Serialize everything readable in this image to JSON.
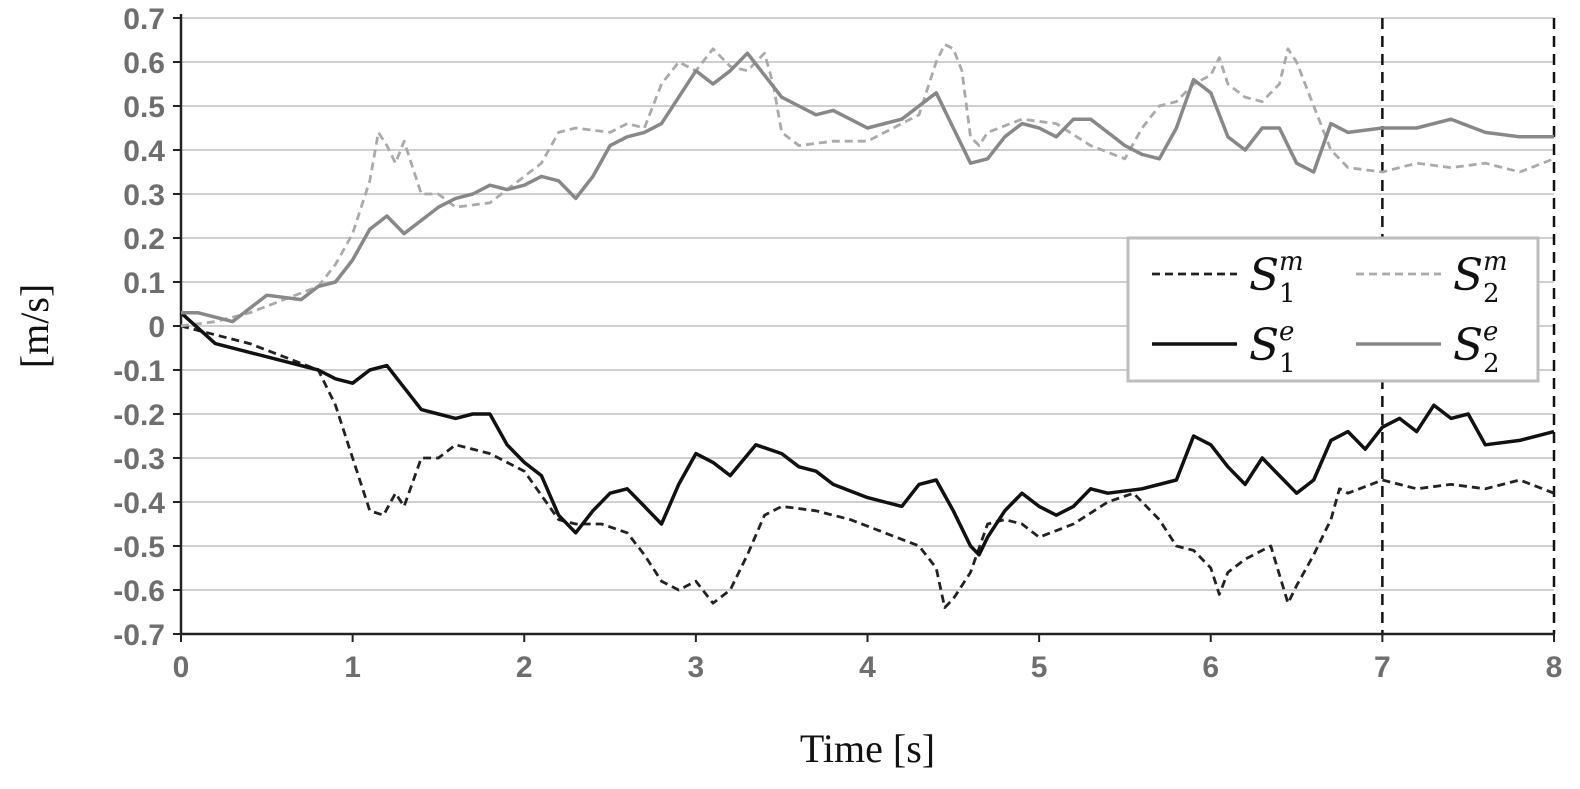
{
  "chart_data": {
    "type": "line",
    "xlabel": "Time [s]",
    "ylabel": "[m/s]",
    "xlim": [
      0,
      8
    ],
    "ylim": [
      -0.7,
      0.7
    ],
    "x_ticks": [
      "0",
      "1",
      "2",
      "3",
      "4",
      "5",
      "6",
      "7",
      "8"
    ],
    "y_ticks": [
      "0.7",
      "0.6",
      "0.5",
      "0.4",
      "0.3",
      "0.2",
      "0.1",
      "0",
      "-0.1",
      "-0.2",
      "-0.3",
      "-0.4",
      "-0.5",
      "-0.6",
      "-0.7"
    ],
    "grid": "horizontal",
    "vertical_markers": [
      7,
      8
    ],
    "legend_position": "right-middle",
    "series": [
      {
        "name": "S1m",
        "label_base": "S",
        "label_sub": "1",
        "label_sup": "m",
        "color": "#222222",
        "style": "dashed",
        "x": [
          0,
          0.2,
          0.4,
          0.6,
          0.8,
          0.9,
          1.0,
          1.1,
          1.18,
          1.25,
          1.3,
          1.4,
          1.5,
          1.6,
          1.8,
          2.0,
          2.2,
          2.3,
          2.45,
          2.6,
          2.7,
          2.8,
          2.9,
          3.0,
          3.1,
          3.2,
          3.3,
          3.4,
          3.5,
          3.7,
          3.9,
          4.1,
          4.3,
          4.4,
          4.45,
          4.5,
          4.6,
          4.7,
          4.8,
          4.9,
          5.0,
          5.2,
          5.4,
          5.55,
          5.7,
          5.8,
          5.9,
          6.0,
          6.05,
          6.1,
          6.2,
          6.35,
          6.45,
          6.5,
          6.6,
          6.7,
          6.75,
          6.8,
          7.0,
          7.2,
          7.4,
          7.6,
          7.8,
          8.0
        ],
        "y": [
          0.0,
          -0.02,
          -0.04,
          -0.07,
          -0.1,
          -0.18,
          -0.3,
          -0.42,
          -0.43,
          -0.38,
          -0.41,
          -0.3,
          -0.3,
          -0.27,
          -0.29,
          -0.33,
          -0.44,
          -0.45,
          -0.45,
          -0.47,
          -0.52,
          -0.58,
          -0.6,
          -0.58,
          -0.63,
          -0.6,
          -0.52,
          -0.43,
          -0.41,
          -0.42,
          -0.44,
          -0.47,
          -0.5,
          -0.55,
          -0.64,
          -0.62,
          -0.56,
          -0.45,
          -0.44,
          -0.45,
          -0.48,
          -0.45,
          -0.4,
          -0.38,
          -0.44,
          -0.5,
          -0.51,
          -0.55,
          -0.61,
          -0.56,
          -0.53,
          -0.5,
          -0.63,
          -0.59,
          -0.52,
          -0.44,
          -0.37,
          -0.38,
          -0.35,
          -0.37,
          -0.36,
          -0.37,
          -0.35,
          -0.38
        ]
      },
      {
        "name": "S2m",
        "label_base": "S",
        "label_sub": "2",
        "label_sup": "m",
        "color": "#aaaaaa",
        "style": "dashed",
        "x": [
          0,
          0.2,
          0.4,
          0.6,
          0.8,
          0.9,
          1.0,
          1.1,
          1.15,
          1.2,
          1.25,
          1.3,
          1.4,
          1.5,
          1.6,
          1.8,
          2.0,
          2.1,
          2.2,
          2.3,
          2.5,
          2.6,
          2.7,
          2.8,
          2.9,
          3.0,
          3.1,
          3.2,
          3.3,
          3.4,
          3.45,
          3.5,
          3.6,
          3.8,
          4.0,
          4.2,
          4.3,
          4.4,
          4.45,
          4.5,
          4.55,
          4.6,
          4.65,
          4.7,
          4.9,
          5.1,
          5.3,
          5.5,
          5.6,
          5.7,
          5.8,
          5.9,
          6.0,
          6.05,
          6.1,
          6.2,
          6.3,
          6.4,
          6.45,
          6.5,
          6.6,
          6.7,
          6.8,
          7.0,
          7.2,
          7.4,
          7.6,
          7.8,
          8.0
        ],
        "y": [
          0.0,
          0.01,
          0.03,
          0.06,
          0.09,
          0.14,
          0.21,
          0.33,
          0.44,
          0.41,
          0.37,
          0.42,
          0.3,
          0.3,
          0.27,
          0.28,
          0.34,
          0.37,
          0.44,
          0.45,
          0.44,
          0.46,
          0.45,
          0.55,
          0.6,
          0.58,
          0.63,
          0.59,
          0.58,
          0.62,
          0.55,
          0.44,
          0.41,
          0.42,
          0.42,
          0.46,
          0.48,
          0.6,
          0.64,
          0.63,
          0.58,
          0.43,
          0.41,
          0.44,
          0.47,
          0.46,
          0.41,
          0.38,
          0.45,
          0.5,
          0.51,
          0.55,
          0.57,
          0.61,
          0.55,
          0.52,
          0.51,
          0.55,
          0.63,
          0.6,
          0.5,
          0.4,
          0.36,
          0.35,
          0.37,
          0.36,
          0.37,
          0.35,
          0.38
        ]
      },
      {
        "name": "S1e",
        "label_base": "S",
        "label_sub": "1",
        "label_sup": "e",
        "color": "#111111",
        "style": "solid",
        "x": [
          0,
          0.2,
          0.4,
          0.6,
          0.8,
          0.9,
          1.0,
          1.1,
          1.2,
          1.3,
          1.4,
          1.5,
          1.6,
          1.7,
          1.8,
          1.9,
          2.0,
          2.1,
          2.2,
          2.3,
          2.4,
          2.5,
          2.6,
          2.7,
          2.8,
          2.9,
          3.0,
          3.1,
          3.2,
          3.35,
          3.5,
          3.6,
          3.7,
          3.8,
          4.0,
          4.2,
          4.3,
          4.4,
          4.5,
          4.6,
          4.65,
          4.7,
          4.8,
          4.9,
          5.0,
          5.1,
          5.2,
          5.3,
          5.4,
          5.6,
          5.8,
          5.9,
          6.0,
          6.1,
          6.2,
          6.3,
          6.4,
          6.5,
          6.6,
          6.7,
          6.8,
          6.9,
          7.0,
          7.1,
          7.2,
          7.3,
          7.4,
          7.5,
          7.6,
          7.8,
          8.0
        ],
        "y": [
          0.03,
          -0.04,
          -0.06,
          -0.08,
          -0.1,
          -0.12,
          -0.13,
          -0.1,
          -0.09,
          -0.14,
          -0.19,
          -0.2,
          -0.21,
          -0.2,
          -0.2,
          -0.27,
          -0.31,
          -0.34,
          -0.43,
          -0.47,
          -0.42,
          -0.38,
          -0.37,
          -0.41,
          -0.45,
          -0.36,
          -0.29,
          -0.31,
          -0.34,
          -0.27,
          -0.29,
          -0.32,
          -0.33,
          -0.36,
          -0.39,
          -0.41,
          -0.36,
          -0.35,
          -0.42,
          -0.5,
          -0.52,
          -0.48,
          -0.42,
          -0.38,
          -0.41,
          -0.43,
          -0.41,
          -0.37,
          -0.38,
          -0.37,
          -0.35,
          -0.25,
          -0.27,
          -0.32,
          -0.36,
          -0.3,
          -0.34,
          -0.38,
          -0.35,
          -0.26,
          -0.24,
          -0.28,
          -0.23,
          -0.21,
          -0.24,
          -0.18,
          -0.21,
          -0.2,
          -0.27,
          -0.26,
          -0.24
        ]
      },
      {
        "name": "S2e",
        "label_base": "S",
        "label_sub": "2",
        "label_sup": "e",
        "color": "#888888",
        "style": "solid",
        "x": [
          0,
          0.1,
          0.3,
          0.5,
          0.7,
          0.8,
          0.9,
          1.0,
          1.1,
          1.2,
          1.3,
          1.4,
          1.5,
          1.6,
          1.7,
          1.8,
          1.9,
          2.0,
          2.1,
          2.2,
          2.3,
          2.4,
          2.5,
          2.6,
          2.7,
          2.8,
          2.9,
          3.0,
          3.1,
          3.2,
          3.3,
          3.4,
          3.5,
          3.6,
          3.7,
          3.8,
          4.0,
          4.2,
          4.3,
          4.4,
          4.5,
          4.6,
          4.7,
          4.8,
          4.9,
          5.0,
          5.1,
          5.2,
          5.3,
          5.4,
          5.5,
          5.6,
          5.7,
          5.8,
          5.9,
          6.0,
          6.1,
          6.2,
          6.3,
          6.4,
          6.5,
          6.6,
          6.7,
          6.8,
          7.0,
          7.2,
          7.4,
          7.6,
          7.8,
          8.0
        ],
        "y": [
          0.03,
          0.03,
          0.01,
          0.07,
          0.06,
          0.09,
          0.1,
          0.15,
          0.22,
          0.25,
          0.21,
          0.24,
          0.27,
          0.29,
          0.3,
          0.32,
          0.31,
          0.32,
          0.34,
          0.33,
          0.29,
          0.34,
          0.41,
          0.43,
          0.44,
          0.46,
          0.52,
          0.58,
          0.55,
          0.58,
          0.62,
          0.57,
          0.52,
          0.5,
          0.48,
          0.49,
          0.45,
          0.47,
          0.5,
          0.53,
          0.45,
          0.37,
          0.38,
          0.43,
          0.46,
          0.45,
          0.43,
          0.47,
          0.47,
          0.44,
          0.41,
          0.39,
          0.38,
          0.45,
          0.56,
          0.53,
          0.43,
          0.4,
          0.45,
          0.45,
          0.37,
          0.35,
          0.46,
          0.44,
          0.45,
          0.45,
          0.47,
          0.44,
          0.43,
          0.43
        ]
      }
    ]
  }
}
